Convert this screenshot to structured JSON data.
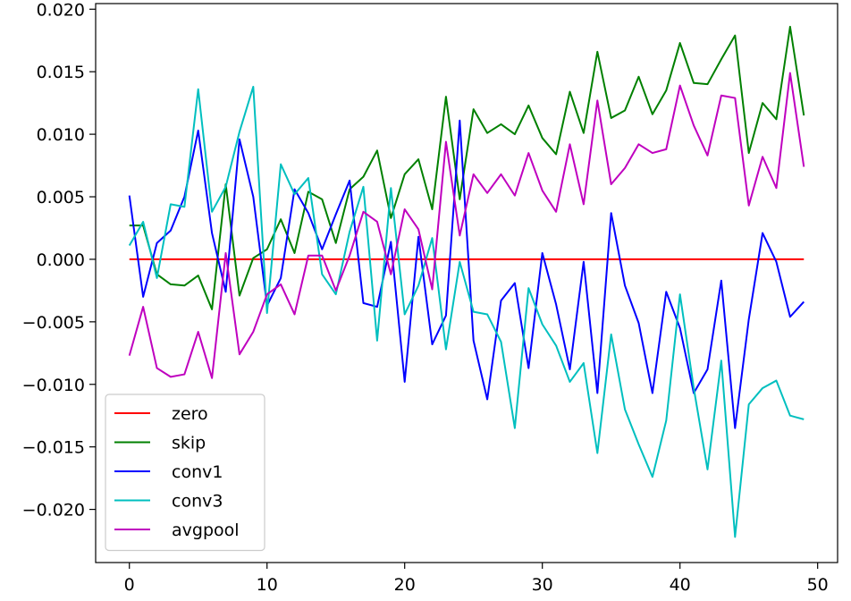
{
  "chart_data": {
    "type": "line",
    "title": "",
    "xlabel": "",
    "ylabel": "",
    "xlim": [
      -2.45,
      51.45
    ],
    "ylim": [
      -0.02425,
      0.02045
    ],
    "x_ticks": [
      0,
      10,
      20,
      30,
      40,
      50
    ],
    "x_tick_labels": [
      "0",
      "10",
      "20",
      "30",
      "40",
      "50"
    ],
    "y_ticks": [
      -0.02,
      -0.015,
      -0.01,
      -0.005,
      0.0,
      0.005,
      0.01,
      0.015,
      0.02
    ],
    "y_tick_labels": [
      "−0.020",
      "−0.015",
      "−0.010",
      "−0.005",
      "0.000",
      "0.005",
      "0.010",
      "0.015",
      "0.020"
    ],
    "grid": false,
    "legend_position": "lower-left",
    "x": [
      0,
      1,
      2,
      3,
      4,
      5,
      6,
      7,
      8,
      9,
      10,
      11,
      12,
      13,
      14,
      15,
      16,
      17,
      18,
      19,
      20,
      21,
      22,
      23,
      24,
      25,
      26,
      27,
      28,
      29,
      30,
      31,
      32,
      33,
      34,
      35,
      36,
      37,
      38,
      39,
      40,
      41,
      42,
      43,
      44,
      45,
      46,
      47,
      48,
      49
    ],
    "series": [
      {
        "name": "zero",
        "color": "#ff0000",
        "values": [
          0,
          0,
          0,
          0,
          0,
          0,
          0,
          0,
          0,
          0,
          0,
          0,
          0,
          0,
          0,
          0,
          0,
          0,
          0,
          0,
          0,
          0,
          0,
          0,
          0,
          0,
          0,
          0,
          0,
          0,
          0,
          0,
          0,
          0,
          0,
          0,
          0,
          0,
          0,
          0,
          0,
          0,
          0,
          0,
          0,
          0,
          0,
          0,
          0,
          0
        ]
      },
      {
        "name": "skip",
        "color": "#008000",
        "values": [
          0.0027,
          0.0027,
          -0.0012,
          -0.002,
          -0.0021,
          -0.0013,
          -0.004,
          0.006,
          -0.0029,
          0.0001,
          0.0008,
          0.0032,
          0.0005,
          0.0054,
          0.0048,
          0.0013,
          0.0056,
          0.0066,
          0.0087,
          0.0033,
          0.0068,
          0.008,
          0.004,
          0.013,
          0.0048,
          0.012,
          0.0101,
          0.0108,
          0.01,
          0.0123,
          0.0097,
          0.0084,
          0.0134,
          0.0101,
          0.0166,
          0.0113,
          0.0119,
          0.0146,
          0.0116,
          0.0135,
          0.0173,
          0.0141,
          0.014,
          0.016,
          0.0179,
          0.0085,
          0.0125,
          0.0112,
          0.0186,
          0.0115
        ]
      },
      {
        "name": "conv1",
        "color": "#0000ff",
        "values": [
          0.0051,
          -0.003,
          0.0013,
          0.0023,
          0.005,
          0.0103,
          0.0021,
          -0.0026,
          0.0096,
          0.005,
          -0.0037,
          -0.0015,
          0.0056,
          0.0037,
          0.0008,
          0.0036,
          0.0063,
          -0.0035,
          -0.0038,
          0.0014,
          -0.0098,
          0.0018,
          -0.0068,
          -0.0045,
          0.0111,
          -0.0065,
          -0.0112,
          -0.0033,
          -0.0019,
          -0.0087,
          0.0005,
          -0.0036,
          -0.0088,
          -0.0002,
          -0.0107,
          0.0037,
          -0.0021,
          -0.0051,
          -0.0107,
          -0.0026,
          -0.0055,
          -0.0107,
          -0.0088,
          -0.0017,
          -0.0135,
          -0.0048,
          0.0021,
          -0.0002,
          -0.0046,
          -0.0034
        ]
      },
      {
        "name": "conv3",
        "color": "#00bfbf",
        "values": [
          0.0011,
          0.003,
          -0.0015,
          0.0044,
          0.0042,
          0.0136,
          0.0038,
          0.0058,
          0.0102,
          0.0138,
          -0.0043,
          0.0076,
          0.0052,
          0.0065,
          -0.0012,
          -0.0028,
          0.0022,
          0.0058,
          -0.0065,
          0.0057,
          -0.0044,
          -0.0021,
          0.0017,
          -0.0072,
          -0.0002,
          -0.0042,
          -0.0044,
          -0.0066,
          -0.0135,
          -0.0023,
          -0.0052,
          -0.0069,
          -0.0098,
          -0.0083,
          -0.0155,
          -0.006,
          -0.012,
          -0.0148,
          -0.0174,
          -0.0129,
          -0.0028,
          -0.0103,
          -0.0168,
          -0.0081,
          -0.0222,
          -0.0116,
          -0.0103,
          -0.0097,
          -0.0125,
          -0.0128
        ]
      },
      {
        "name": "avgpool",
        "color": "#bf00bf",
        "values": [
          -0.0077,
          -0.0038,
          -0.0087,
          -0.0094,
          -0.0092,
          -0.0058,
          -0.0095,
          0.0005,
          -0.0076,
          -0.0058,
          -0.0028,
          -0.002,
          -0.0044,
          0.0003,
          0.0003,
          -0.0025,
          0.0003,
          0.0038,
          0.003,
          -0.0012,
          0.004,
          0.0024,
          -0.0024,
          0.0094,
          0.0019,
          0.0068,
          0.0053,
          0.0068,
          0.0051,
          0.0085,
          0.0055,
          0.0038,
          0.0092,
          0.0044,
          0.0127,
          0.006,
          0.0073,
          0.0092,
          0.0085,
          0.0088,
          0.0139,
          0.0107,
          0.0083,
          0.0131,
          0.0129,
          0.0043,
          0.0082,
          0.0057,
          0.0149,
          0.0074
        ]
      }
    ]
  }
}
